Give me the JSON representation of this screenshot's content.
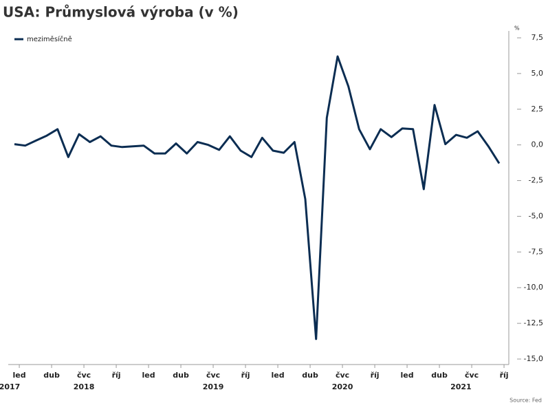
{
  "chart_data": {
    "type": "line",
    "title": "USA: Průmyslová výroba (v %)",
    "y_unit": "%",
    "source": "Source: Fed",
    "categories": [
      "led",
      null,
      null,
      "dub",
      null,
      null,
      "čvc",
      null,
      null,
      "říj",
      null,
      null,
      "led",
      null,
      null,
      "dub",
      null,
      null,
      "čvc",
      null,
      null,
      "říj",
      null,
      null,
      "led",
      null,
      null,
      "dub",
      null,
      null,
      "čvc",
      null,
      null,
      "říj",
      null,
      null,
      "led",
      null,
      null,
      "dub",
      null,
      null,
      "čvc",
      null,
      null,
      "říj"
    ],
    "years": [
      "2017",
      null,
      null,
      null,
      null,
      null,
      "2018",
      null,
      null,
      null,
      null,
      null,
      null,
      null,
      null,
      null,
      null,
      null,
      "2019",
      null,
      null,
      null,
      null,
      null,
      null,
      null,
      null,
      null,
      null,
      null,
      "2020",
      null,
      null,
      null,
      null,
      null,
      null,
      null,
      null,
      null,
      null,
      "2021",
      null,
      null,
      null,
      null
    ],
    "series": [
      {
        "name": "meziměsíčně",
        "color": "#0b2d52",
        "values": [
          0.05,
          -0.05,
          0.3,
          0.65,
          1.1,
          -0.85,
          0.75,
          0.2,
          0.6,
          -0.05,
          -0.15,
          -0.1,
          -0.05,
          -0.6,
          -0.6,
          0.1,
          -0.6,
          0.2,
          0.0,
          -0.35,
          0.6,
          -0.4,
          -0.85,
          0.5,
          -0.4,
          -0.55,
          0.2,
          -3.8,
          -13.6,
          1.9,
          6.2,
          4.1,
          1.1,
          -0.3,
          1.1,
          0.55,
          1.15,
          1.1,
          -3.1,
          2.8,
          0.05,
          0.7,
          0.5,
          0.95,
          -0.1,
          -1.3
        ]
      }
    ],
    "ylim": [
      -15,
      7.5
    ],
    "yticks": [
      {
        "value": 7.5,
        "label": "7,5"
      },
      {
        "value": 5,
        "label": "5,0"
      },
      {
        "value": 2.5,
        "label": "2,5"
      },
      {
        "value": 0,
        "label": "0,0"
      },
      {
        "value": -2.5,
        "label": "-2,5"
      },
      {
        "value": -5,
        "label": "-5,0"
      },
      {
        "value": -7.5,
        "label": "-7,5"
      },
      {
        "value": -10,
        "label": "-10,0"
      },
      {
        "value": -12.5,
        "label": "-12,5"
      },
      {
        "value": -15,
        "label": "-15,0"
      }
    ],
    "legend": "top-left"
  }
}
